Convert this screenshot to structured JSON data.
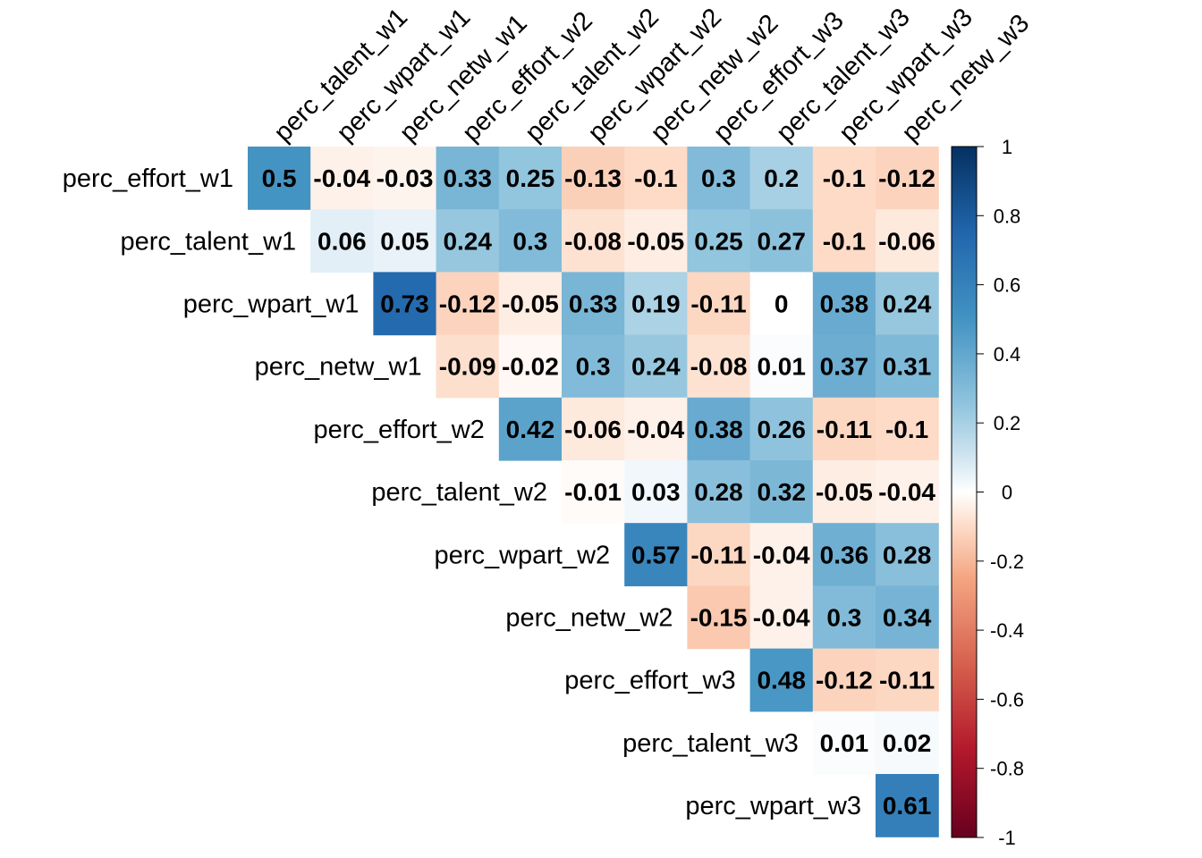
{
  "chart_data": {
    "type": "heatmap",
    "layout": "upper-triangular correlation matrix",
    "row_labels": [
      "perc_effort_w1",
      "perc_talent_w1",
      "perc_wpart_w1",
      "perc_netw_w1",
      "perc_effort_w2",
      "perc_talent_w2",
      "perc_wpart_w2",
      "perc_netw_w2",
      "perc_effort_w3",
      "perc_talent_w3",
      "perc_wpart_w3"
    ],
    "col_labels": [
      "perc_talent_w1",
      "perc_wpart_w1",
      "perc_netw_w1",
      "perc_effort_w2",
      "perc_talent_w2",
      "perc_wpart_w2",
      "perc_netw_w2",
      "perc_effort_w3",
      "perc_talent_w3",
      "perc_wpart_w3",
      "perc_netw_w3"
    ],
    "values": [
      [
        0.5,
        -0.04,
        -0.03,
        0.33,
        0.25,
        -0.13,
        -0.1,
        0.3,
        0.2,
        -0.1,
        -0.12
      ],
      [
        null,
        0.06,
        0.05,
        0.24,
        0.3,
        -0.08,
        -0.05,
        0.25,
        0.27,
        -0.1,
        -0.06
      ],
      [
        null,
        null,
        0.73,
        -0.12,
        -0.05,
        0.33,
        0.19,
        -0.11,
        0,
        0.38,
        0.24
      ],
      [
        null,
        null,
        null,
        -0.09,
        -0.02,
        0.3,
        0.24,
        -0.08,
        0.01,
        0.37,
        0.31
      ],
      [
        null,
        null,
        null,
        null,
        0.42,
        -0.06,
        -0.04,
        0.38,
        0.26,
        -0.11,
        -0.1
      ],
      [
        null,
        null,
        null,
        null,
        null,
        -0.01,
        0.03,
        0.28,
        0.32,
        -0.05,
        -0.04
      ],
      [
        null,
        null,
        null,
        null,
        null,
        null,
        0.57,
        -0.11,
        -0.04,
        0.36,
        0.28
      ],
      [
        null,
        null,
        null,
        null,
        null,
        null,
        null,
        -0.15,
        -0.04,
        0.3,
        0.34
      ],
      [
        null,
        null,
        null,
        null,
        null,
        null,
        null,
        null,
        0.48,
        -0.12,
        -0.11
      ],
      [
        null,
        null,
        null,
        null,
        null,
        null,
        null,
        null,
        null,
        0.01,
        0.02
      ],
      [
        null,
        null,
        null,
        null,
        null,
        null,
        null,
        null,
        null,
        null,
        0.61
      ]
    ],
    "color_scale": {
      "range": [
        -1,
        1
      ],
      "ticks": [
        "1",
        "0.8",
        "0.6",
        "0.4",
        "0.2",
        "0",
        "-0.2",
        "-0.4",
        "-0.6",
        "-0.8",
        "-1"
      ],
      "stops": [
        {
          "v": -1.0,
          "c": "#67001F"
        },
        {
          "v": -0.75,
          "c": "#B2182B"
        },
        {
          "v": -0.5,
          "c": "#D6604D"
        },
        {
          "v": -0.25,
          "c": "#F4A582"
        },
        {
          "v": -0.1,
          "c": "#FDDBC7"
        },
        {
          "v": 0.0,
          "c": "#FFFFFF"
        },
        {
          "v": 0.1,
          "c": "#D1E5F0"
        },
        {
          "v": 0.25,
          "c": "#92C5DE"
        },
        {
          "v": 0.5,
          "c": "#4393C3"
        },
        {
          "v": 0.75,
          "c": "#2166AC"
        },
        {
          "v": 1.0,
          "c": "#053061"
        }
      ]
    },
    "legend": "right"
  }
}
